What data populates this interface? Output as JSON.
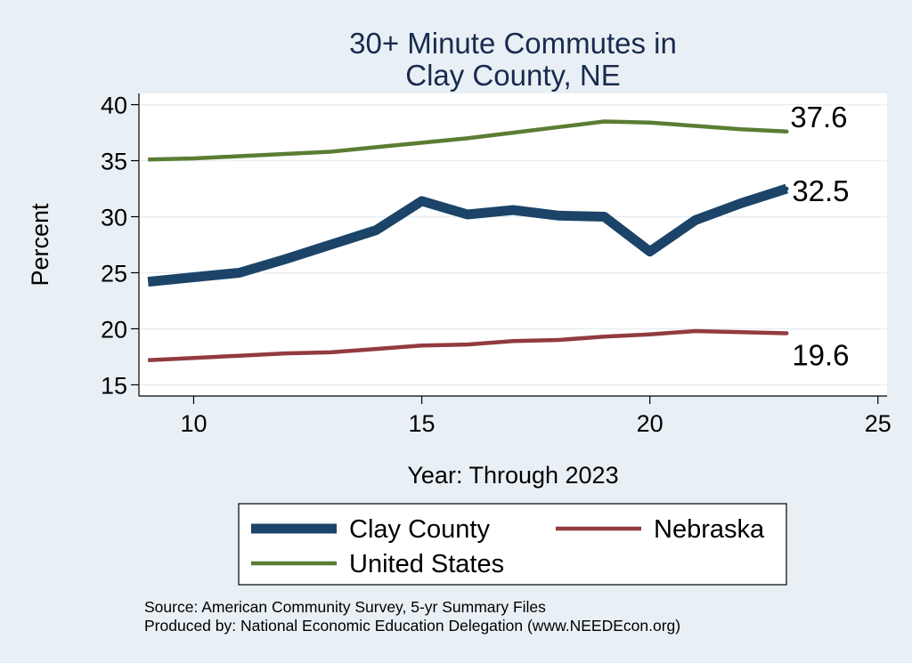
{
  "chart_data": {
    "type": "line",
    "title": [
      "30+ Minute Commutes in",
      "Clay County, NE"
    ],
    "xlabel": "Year: Through 2023",
    "ylabel": "Percent",
    "xlim": [
      8.8,
      25.2
    ],
    "ylim": [
      14,
      41
    ],
    "xticks": [
      10,
      15,
      20,
      25
    ],
    "yticks": [
      15,
      20,
      25,
      30,
      35,
      40
    ],
    "grid": true,
    "series": [
      {
        "name": "Clay County",
        "color": "#1b4468",
        "width": "thick",
        "end_label": "32.5",
        "x": [
          9,
          10,
          11,
          12,
          13,
          14,
          15,
          16,
          17,
          18,
          19,
          20,
          21,
          22,
          23
        ],
        "y": [
          24.2,
          24.6,
          25.0,
          26.2,
          27.5,
          28.8,
          31.4,
          30.2,
          30.6,
          30.1,
          30.0,
          26.9,
          29.7,
          31.2,
          32.5
        ]
      },
      {
        "name": "United States",
        "color": "#5a7d33",
        "width": "thin",
        "end_label": "37.6",
        "x": [
          9,
          10,
          11,
          12,
          13,
          14,
          15,
          16,
          17,
          18,
          19,
          20,
          21,
          22,
          23
        ],
        "y": [
          35.1,
          35.2,
          35.4,
          35.6,
          35.8,
          36.2,
          36.6,
          37.0,
          37.5,
          38.0,
          38.5,
          38.4,
          38.1,
          37.8,
          37.6
        ]
      },
      {
        "name": "Nebraska",
        "color": "#923b3f",
        "width": "thin",
        "end_label": "19.6",
        "x": [
          9,
          10,
          11,
          12,
          13,
          14,
          15,
          16,
          17,
          18,
          19,
          20,
          21,
          22,
          23
        ],
        "y": [
          17.2,
          17.4,
          17.6,
          17.8,
          17.9,
          18.2,
          18.5,
          18.6,
          18.9,
          19.0,
          19.3,
          19.5,
          19.8,
          19.7,
          19.6
        ]
      }
    ],
    "legend": {
      "placement": "bottom",
      "entries": [
        "Clay County",
        "Nebraska",
        "United States"
      ]
    }
  },
  "footer": {
    "source": "Source: American Community Survey, 5-yr Summary Files",
    "produced_by": "Produced by: National Economic Education Delegation (www.NEEDEcon.org)"
  }
}
